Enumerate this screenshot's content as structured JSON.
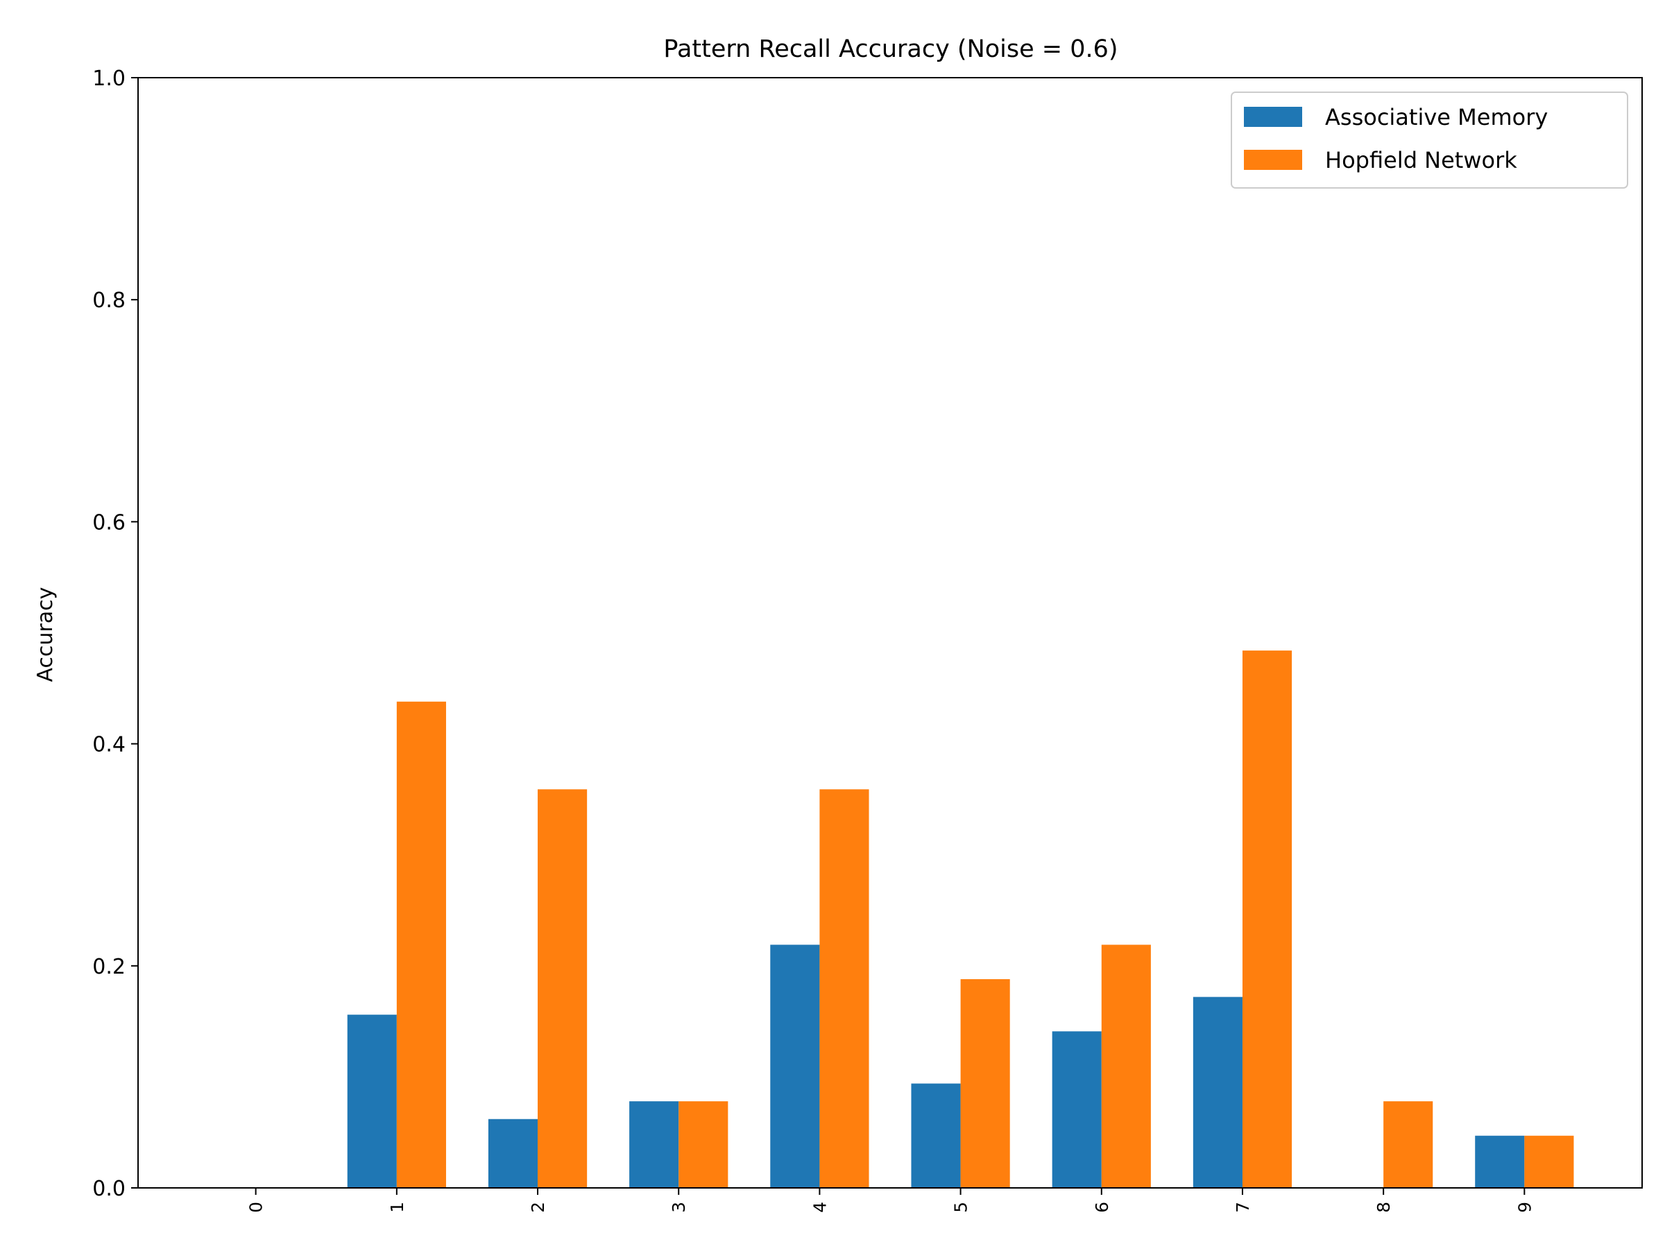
{
  "chart_data": {
    "type": "bar",
    "title": "Pattern Recall Accuracy (Noise = 0.6)",
    "xlabel": "",
    "ylabel": "Accuracy",
    "ylim": [
      0,
      1.0
    ],
    "yticks": [
      "0.0",
      "0.2",
      "0.4",
      "0.6",
      "0.8",
      "1.0"
    ],
    "categories": [
      "0",
      "1",
      "2",
      "3",
      "4",
      "5",
      "6",
      "7",
      "8",
      "9"
    ],
    "series": [
      {
        "name": "Associative Memory",
        "color": "#1f77b4",
        "values": [
          0.0,
          0.156,
          0.062,
          0.078,
          0.219,
          0.094,
          0.141,
          0.172,
          0.0,
          0.047
        ]
      },
      {
        "name": "Hopfield Network",
        "color": "#ff7f0e",
        "values": [
          0.0,
          0.438,
          0.359,
          0.078,
          0.359,
          0.188,
          0.219,
          0.484,
          0.078,
          0.047
        ]
      }
    ],
    "grid": false,
    "legend_position": "top-right",
    "x_tick_rotation": "vertical"
  }
}
